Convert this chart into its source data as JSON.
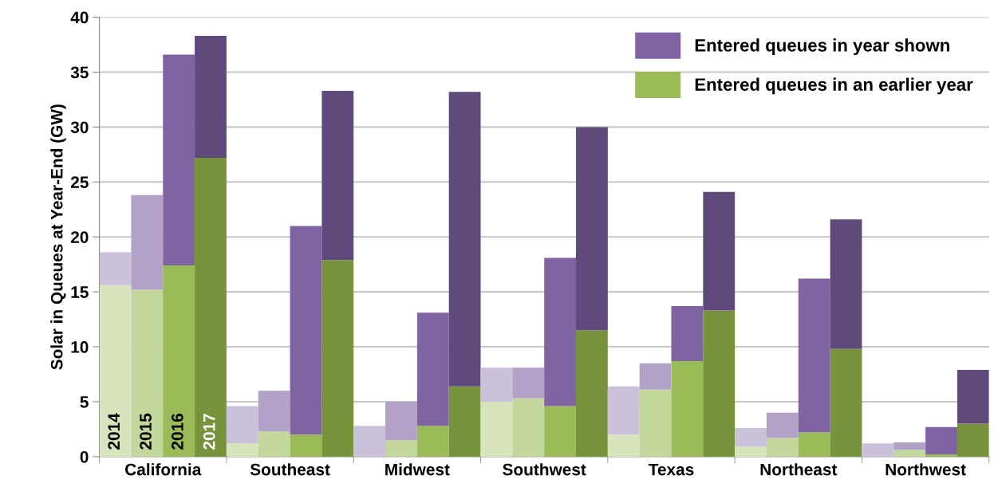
{
  "chart_data": {
    "type": "bar",
    "stacked": true,
    "ylabel": "Solar in Queues at Year-End (GW)",
    "categories": [
      "2014",
      "2015",
      "2016",
      "2017",
      null,
      null,
      null,
      null,
      null,
      null,
      null,
      null,
      null,
      null,
      null,
      null,
      null,
      null,
      null,
      null,
      null,
      null,
      null,
      null,
      null,
      null,
      null,
      null
    ],
    "series": [
      {
        "name": "Entered queues in an earlier year",
        "color": "#9bbb59",
        "colors": [
          "#d7e4bd",
          "#c3d69b",
          "#9bbb59",
          "#77933c",
          "#d7e4bd",
          "#c3d69b",
          "#9bbb59",
          "#77933c",
          "#d7e4bd",
          "#c3d69b",
          "#9bbb59",
          "#77933c",
          "#d7e4bd",
          "#c3d69b",
          "#9bbb59",
          "#77933c",
          "#d7e4bd",
          "#c3d69b",
          "#9bbb59",
          "#77933c",
          "#d7e4bd",
          "#c3d69b",
          "#9bbb59",
          "#77933c",
          "#d7e4bd",
          "#c3d69b",
          "#9bbb59",
          "#77933c"
        ],
        "values": [
          15.6,
          15.2,
          17.4,
          27.2,
          1.2,
          2.3,
          2.0,
          17.9,
          0,
          1.5,
          2.8,
          6.4,
          5.0,
          5.3,
          4.6,
          11.5,
          2.0,
          6.1,
          8.7,
          13.3,
          0.9,
          1.7,
          2.2,
          9.8,
          0,
          0.6,
          0.2,
          3.0
        ]
      },
      {
        "name": "Entered queues in year shown",
        "color": "#8064a2",
        "colors": [
          "#ccc1da",
          "#b3a2c7",
          "#8064a2",
          "#604a7b",
          "#ccc1da",
          "#b3a2c7",
          "#8064a2",
          "#604a7b",
          "#ccc1da",
          "#b3a2c7",
          "#8064a2",
          "#604a7b",
          "#ccc1da",
          "#b3a2c7",
          "#8064a2",
          "#604a7b",
          "#ccc1da",
          "#b3a2c7",
          "#8064a2",
          "#604a7b",
          "#ccc1da",
          "#b3a2c7",
          "#8064a2",
          "#604a7b",
          "#ccc1da",
          "#b3a2c7",
          "#8064a2",
          "#604a7b"
        ],
        "values": [
          3.0,
          8.6,
          19.2,
          11.1,
          3.4,
          3.7,
          19.0,
          15.4,
          2.8,
          3.5,
          10.3,
          26.8,
          3.1,
          2.8,
          13.5,
          18.5,
          4.4,
          2.4,
          5.0,
          10.8,
          1.7,
          2.3,
          14.0,
          11.8,
          1.2,
          0.7,
          2.5,
          4.9
        ]
      }
    ],
    "annotations": [
      "California",
      "Southeast",
      "Midwest",
      "Southwest",
      "Texas",
      "Northeast",
      "Northwest"
    ],
    "ylim": [
      0,
      40
    ],
    "yticks": [
      0,
      5,
      10,
      15,
      20,
      25,
      30,
      35,
      40
    ],
    "grid": "y",
    "legend": "top right"
  }
}
